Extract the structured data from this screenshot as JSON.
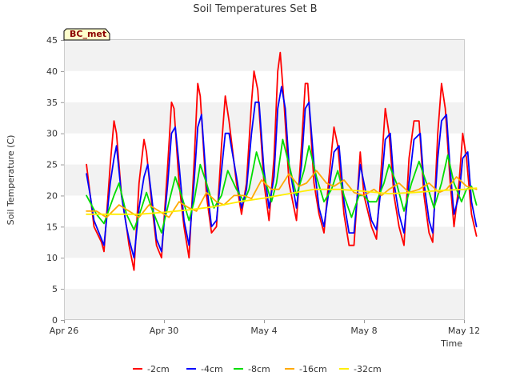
{
  "chart_data": {
    "type": "line",
    "title": "Soil Temperatures Set B",
    "xlabel": "Time",
    "ylabel": "Soil Temperature (C)",
    "station_label": "BC_met",
    "ylim": [
      0,
      45
    ],
    "y_ticks": [
      0,
      5,
      10,
      15,
      20,
      25,
      30,
      35,
      40,
      45
    ],
    "x_ticks": [
      {
        "label": "Apr 26",
        "day": 0
      },
      {
        "label": "Apr 30",
        "day": 4
      },
      {
        "label": "May 4",
        "day": 8
      },
      {
        "label": "May 8",
        "day": 12
      },
      {
        "label": "May 12",
        "day": 16
      }
    ],
    "xlim_days": [
      0,
      16
    ],
    "grid": "horizontal-bands",
    "legend_position": "bottom",
    "series": [
      {
        "name": "-2cm",
        "color": "#ff0000",
        "points": [
          [
            0.9,
            25
          ],
          [
            1.05,
            20
          ],
          [
            1.2,
            15
          ],
          [
            1.5,
            12.5
          ],
          [
            1.6,
            11
          ],
          [
            1.85,
            25
          ],
          [
            2.0,
            32
          ],
          [
            2.1,
            30
          ],
          [
            2.3,
            20
          ],
          [
            2.5,
            15
          ],
          [
            2.6,
            12
          ],
          [
            2.8,
            8
          ],
          [
            3.0,
            22
          ],
          [
            3.2,
            29
          ],
          [
            3.3,
            27
          ],
          [
            3.5,
            19
          ],
          [
            3.7,
            12
          ],
          [
            3.9,
            10
          ],
          [
            4.15,
            25
          ],
          [
            4.3,
            35
          ],
          [
            4.4,
            34
          ],
          [
            4.6,
            22
          ],
          [
            4.8,
            15
          ],
          [
            5.0,
            10
          ],
          [
            5.2,
            25
          ],
          [
            5.35,
            38
          ],
          [
            5.45,
            36
          ],
          [
            5.7,
            20
          ],
          [
            5.9,
            14
          ],
          [
            6.1,
            15
          ],
          [
            6.3,
            28
          ],
          [
            6.45,
            36
          ],
          [
            6.6,
            32
          ],
          [
            6.9,
            22
          ],
          [
            7.1,
            17
          ],
          [
            7.3,
            22
          ],
          [
            7.5,
            35
          ],
          [
            7.6,
            40
          ],
          [
            7.75,
            37
          ],
          [
            8.0,
            22
          ],
          [
            8.2,
            16
          ],
          [
            8.4,
            26
          ],
          [
            8.55,
            40
          ],
          [
            8.65,
            43
          ],
          [
            8.8,
            35
          ],
          [
            9.0,
            22
          ],
          [
            9.3,
            16
          ],
          [
            9.5,
            28
          ],
          [
            9.65,
            38
          ],
          [
            9.75,
            38
          ],
          [
            10.0,
            22
          ],
          [
            10.2,
            17
          ],
          [
            10.4,
            14
          ],
          [
            10.6,
            23
          ],
          [
            10.8,
            31
          ],
          [
            10.95,
            28
          ],
          [
            11.2,
            17
          ],
          [
            11.4,
            12
          ],
          [
            11.6,
            12
          ],
          [
            11.85,
            27
          ],
          [
            12.0,
            20
          ],
          [
            12.3,
            15
          ],
          [
            12.5,
            13
          ],
          [
            12.7,
            25
          ],
          [
            12.85,
            34
          ],
          [
            13.0,
            30
          ],
          [
            13.2,
            20
          ],
          [
            13.4,
            15
          ],
          [
            13.6,
            12
          ],
          [
            13.8,
            26
          ],
          [
            14.0,
            32
          ],
          [
            14.2,
            32
          ],
          [
            14.4,
            20
          ],
          [
            14.6,
            14
          ],
          [
            14.75,
            12.5
          ],
          [
            14.95,
            30
          ],
          [
            15.1,
            38
          ],
          [
            15.25,
            34
          ],
          [
            15.45,
            22
          ],
          [
            15.6,
            15
          ],
          [
            15.8,
            22
          ],
          [
            15.95,
            30
          ],
          [
            16.1,
            26
          ],
          [
            16.3,
            17
          ],
          [
            16.5,
            13.5
          ]
        ]
      },
      {
        "name": "-4cm",
        "color": "#0000ff",
        "points": [
          [
            0.9,
            23.5
          ],
          [
            1.05,
            20
          ],
          [
            1.2,
            16
          ],
          [
            1.5,
            13
          ],
          [
            1.6,
            12
          ],
          [
            1.85,
            22
          ],
          [
            2.0,
            26
          ],
          [
            2.1,
            28
          ],
          [
            2.3,
            20
          ],
          [
            2.5,
            15
          ],
          [
            2.6,
            13
          ],
          [
            2.8,
            10
          ],
          [
            3.0,
            18
          ],
          [
            3.2,
            23
          ],
          [
            3.35,
            25
          ],
          [
            3.5,
            20
          ],
          [
            3.7,
            13
          ],
          [
            3.9,
            11
          ],
          [
            4.15,
            22
          ],
          [
            4.3,
            30
          ],
          [
            4.45,
            31
          ],
          [
            4.6,
            25
          ],
          [
            4.8,
            16
          ],
          [
            5.0,
            12
          ],
          [
            5.2,
            22
          ],
          [
            5.35,
            31
          ],
          [
            5.5,
            33
          ],
          [
            5.7,
            22
          ],
          [
            5.9,
            15
          ],
          [
            6.1,
            16
          ],
          [
            6.3,
            24
          ],
          [
            6.45,
            30
          ],
          [
            6.6,
            30
          ],
          [
            6.9,
            23
          ],
          [
            7.1,
            18
          ],
          [
            7.3,
            21
          ],
          [
            7.5,
            30
          ],
          [
            7.65,
            35
          ],
          [
            7.8,
            35
          ],
          [
            8.0,
            24
          ],
          [
            8.2,
            18
          ],
          [
            8.4,
            23
          ],
          [
            8.55,
            34
          ],
          [
            8.7,
            37.5
          ],
          [
            8.85,
            34
          ],
          [
            9.0,
            25
          ],
          [
            9.3,
            18
          ],
          [
            9.5,
            25
          ],
          [
            9.65,
            34
          ],
          [
            9.8,
            35
          ],
          [
            10.0,
            25
          ],
          [
            10.2,
            18
          ],
          [
            10.4,
            15
          ],
          [
            10.6,
            21
          ],
          [
            10.8,
            27
          ],
          [
            11.0,
            28
          ],
          [
            11.2,
            19
          ],
          [
            11.4,
            14
          ],
          [
            11.6,
            14
          ],
          [
            11.85,
            25
          ],
          [
            12.0,
            22
          ],
          [
            12.3,
            16
          ],
          [
            12.5,
            14.5
          ],
          [
            12.7,
            22
          ],
          [
            12.85,
            29
          ],
          [
            13.05,
            30
          ],
          [
            13.2,
            22
          ],
          [
            13.4,
            17
          ],
          [
            13.6,
            14
          ],
          [
            13.8,
            22
          ],
          [
            14.0,
            29
          ],
          [
            14.25,
            30
          ],
          [
            14.4,
            22
          ],
          [
            14.6,
            16
          ],
          [
            14.75,
            14
          ],
          [
            14.95,
            26
          ],
          [
            15.1,
            32
          ],
          [
            15.3,
            33
          ],
          [
            15.45,
            24
          ],
          [
            15.6,
            17
          ],
          [
            15.8,
            20
          ],
          [
            15.95,
            26
          ],
          [
            16.15,
            27
          ],
          [
            16.3,
            19
          ],
          [
            16.5,
            15
          ]
        ]
      },
      {
        "name": "-8cm",
        "color": "#00dd00",
        "points": [
          [
            0.9,
            20
          ],
          [
            1.3,
            17
          ],
          [
            1.6,
            15.5
          ],
          [
            2.0,
            20
          ],
          [
            2.2,
            22
          ],
          [
            2.5,
            17
          ],
          [
            2.8,
            14.5
          ],
          [
            3.1,
            18
          ],
          [
            3.3,
            20.5
          ],
          [
            3.5,
            18
          ],
          [
            3.9,
            14
          ],
          [
            4.2,
            19
          ],
          [
            4.45,
            23
          ],
          [
            4.7,
            20
          ],
          [
            5.0,
            16
          ],
          [
            5.2,
            19
          ],
          [
            5.45,
            25
          ],
          [
            5.7,
            22
          ],
          [
            6.0,
            18
          ],
          [
            6.3,
            20
          ],
          [
            6.55,
            24
          ],
          [
            6.9,
            21
          ],
          [
            7.2,
            19
          ],
          [
            7.4,
            21
          ],
          [
            7.7,
            27
          ],
          [
            8.0,
            23
          ],
          [
            8.3,
            19
          ],
          [
            8.5,
            22
          ],
          [
            8.75,
            29
          ],
          [
            9.0,
            25
          ],
          [
            9.3,
            20
          ],
          [
            9.6,
            24
          ],
          [
            9.8,
            28
          ],
          [
            10.1,
            23
          ],
          [
            10.4,
            19
          ],
          [
            10.7,
            21
          ],
          [
            10.95,
            24
          ],
          [
            11.2,
            20
          ],
          [
            11.5,
            16.5
          ],
          [
            11.8,
            20
          ],
          [
            12.0,
            20
          ],
          [
            12.2,
            19
          ],
          [
            12.5,
            19
          ],
          [
            12.8,
            22
          ],
          [
            13.0,
            25
          ],
          [
            13.3,
            22
          ],
          [
            13.6,
            17.5
          ],
          [
            13.9,
            22
          ],
          [
            14.2,
            25.5
          ],
          [
            14.5,
            22
          ],
          [
            14.8,
            18
          ],
          [
            15.1,
            22
          ],
          [
            15.35,
            26.5
          ],
          [
            15.6,
            22
          ],
          [
            15.9,
            19
          ],
          [
            16.1,
            21
          ],
          [
            16.3,
            21.5
          ],
          [
            16.5,
            18.5
          ]
        ]
      },
      {
        "name": "-16cm",
        "color": "#ffaa00",
        "points": [
          [
            0.9,
            17.5
          ],
          [
            1.3,
            17.5
          ],
          [
            1.7,
            16.5
          ],
          [
            2.2,
            18.5
          ],
          [
            2.6,
            17.5
          ],
          [
            3.0,
            16.5
          ],
          [
            3.4,
            18.5
          ],
          [
            3.8,
            17.5
          ],
          [
            4.2,
            16.5
          ],
          [
            4.6,
            19
          ],
          [
            5.0,
            18
          ],
          [
            5.3,
            17.5
          ],
          [
            5.7,
            20.5
          ],
          [
            6.1,
            19
          ],
          [
            6.4,
            18.5
          ],
          [
            6.8,
            20
          ],
          [
            7.2,
            20
          ],
          [
            7.5,
            19.5
          ],
          [
            7.9,
            22.5
          ],
          [
            8.3,
            21
          ],
          [
            8.6,
            21
          ],
          [
            9.0,
            23.5
          ],
          [
            9.4,
            21.5
          ],
          [
            9.7,
            22
          ],
          [
            10.1,
            24
          ],
          [
            10.5,
            22
          ],
          [
            10.8,
            21.5
          ],
          [
            11.2,
            22.5
          ],
          [
            11.6,
            20.5
          ],
          [
            12.0,
            20
          ],
          [
            12.4,
            21
          ],
          [
            12.7,
            20
          ],
          [
            13.0,
            21
          ],
          [
            13.4,
            22
          ],
          [
            13.8,
            20.5
          ],
          [
            14.2,
            21
          ],
          [
            14.6,
            22
          ],
          [
            15.0,
            20.5
          ],
          [
            15.3,
            21
          ],
          [
            15.7,
            23
          ],
          [
            16.1,
            21.5
          ],
          [
            16.5,
            21
          ]
        ]
      },
      {
        "name": "-32cm",
        "color": "#ffee00",
        "points": [
          [
            0.9,
            17
          ],
          [
            2.0,
            17
          ],
          [
            3.0,
            17
          ],
          [
            4.0,
            17.3
          ],
          [
            5.0,
            17.7
          ],
          [
            6.0,
            18.2
          ],
          [
            7.0,
            19
          ],
          [
            8.0,
            19.6
          ],
          [
            9.0,
            20.3
          ],
          [
            10.0,
            21
          ],
          [
            11.0,
            21
          ],
          [
            12.0,
            20.7
          ],
          [
            13.0,
            20.3
          ],
          [
            14.0,
            20.5
          ],
          [
            15.0,
            20.8
          ],
          [
            16.0,
            21
          ],
          [
            16.5,
            21.2
          ]
        ]
      }
    ]
  }
}
